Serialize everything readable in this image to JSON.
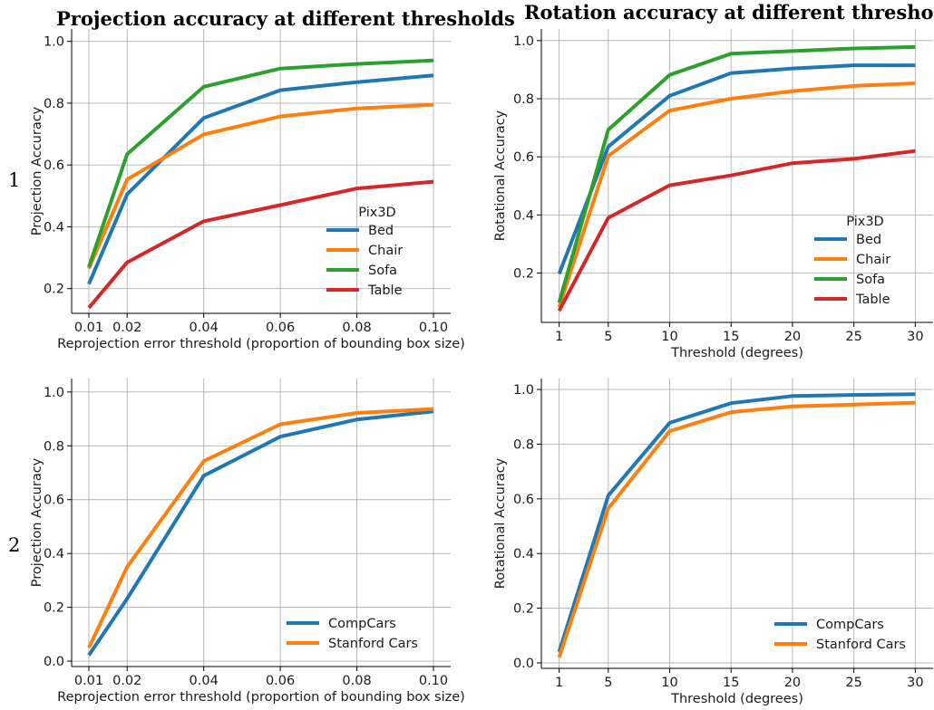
{
  "column_titles": [
    "Projection accuracy at different thresholds",
    "Rotation accuracy at different thresholds"
  ],
  "row_labels": [
    "1",
    "2"
  ],
  "colors": {
    "blue": "#1f77b4",
    "orange": "#ff7f0e",
    "green": "#2ca02c",
    "red": "#d62728"
  },
  "chart_data": [
    {
      "type": "line",
      "title": "Projection accuracy at different thresholds",
      "xlabel": "Reprojection error threshold (proportion of bounding box size)",
      "ylabel": "Projection Accuracy",
      "x": [
        0.01,
        0.02,
        0.04,
        0.06,
        0.08,
        0.1
      ],
      "xticks": [
        "0.01",
        "0.02",
        "0.04",
        "0.06",
        "0.08",
        "0.10"
      ],
      "yticks": [
        "0.2",
        "0.4",
        "0.6",
        "0.8",
        "1.0"
      ],
      "xlim": [
        0.0055,
        0.1045
      ],
      "ylim": [
        0.12,
        1.04
      ],
      "grid": true,
      "legend_title": "Pix3D",
      "legend_position": "lower-right",
      "series": [
        {
          "name": "Bed",
          "color": "#1f77b4",
          "values": [
            0.215,
            0.505,
            0.752,
            0.842,
            0.868,
            0.89
          ]
        },
        {
          "name": "Chair",
          "color": "#ff7f0e",
          "values": [
            0.265,
            0.553,
            0.699,
            0.757,
            0.783,
            0.795
          ]
        },
        {
          "name": "Sofa",
          "color": "#2ca02c",
          "values": [
            0.27,
            0.635,
            0.853,
            0.912,
            0.927,
            0.938
          ]
        },
        {
          "name": "Table",
          "color": "#d62728",
          "values": [
            0.138,
            0.285,
            0.418,
            0.47,
            0.524,
            0.546
          ]
        }
      ]
    },
    {
      "type": "line",
      "title": "Rotation accuracy at different thresholds",
      "xlabel": "Threshold (degrees)",
      "ylabel": "Rotational Accuracy",
      "x": [
        1,
        5,
        10,
        15,
        20,
        25,
        30
      ],
      "xticks": [
        "1",
        "5",
        "10",
        "15",
        "20",
        "25",
        "30"
      ],
      "yticks": [
        "0.2",
        "0.4",
        "0.6",
        "0.8",
        "1.0"
      ],
      "xlim": [
        -0.45,
        31.45
      ],
      "ylim": [
        0.03,
        1.04
      ],
      "grid": true,
      "legend_title": "Pix3D",
      "legend_position": "lower-right",
      "series": [
        {
          "name": "Bed",
          "color": "#1f77b4",
          "values": [
            0.197,
            0.635,
            0.81,
            0.888,
            0.904,
            0.915,
            0.915
          ]
        },
        {
          "name": "Chair",
          "color": "#ff7f0e",
          "values": [
            0.083,
            0.603,
            0.759,
            0.8,
            0.826,
            0.844,
            0.853
          ]
        },
        {
          "name": "Sofa",
          "color": "#2ca02c",
          "values": [
            0.098,
            0.693,
            0.882,
            0.955,
            0.964,
            0.973,
            0.978
          ]
        },
        {
          "name": "Table",
          "color": "#d62728",
          "values": [
            0.07,
            0.39,
            0.502,
            0.536,
            0.578,
            0.593,
            0.62
          ]
        }
      ]
    },
    {
      "type": "line",
      "title": "",
      "xlabel": "Reprojection error threshold (proportion of bounding box size)",
      "ylabel": "Projection Accuracy",
      "x": [
        0.01,
        0.02,
        0.04,
        0.06,
        0.08,
        0.1
      ],
      "xticks": [
        "0.01",
        "0.02",
        "0.04",
        "0.06",
        "0.08",
        "0.10"
      ],
      "yticks": [
        "0.0",
        "0.2",
        "0.4",
        "0.6",
        "0.8",
        "1.0"
      ],
      "xlim": [
        0.0055,
        0.1045
      ],
      "ylim": [
        -0.02,
        1.05
      ],
      "grid": true,
      "legend_title": "",
      "legend_position": "lower-right",
      "series": [
        {
          "name": "CompCars",
          "color": "#1f77b4",
          "values": [
            0.022,
            0.232,
            0.689,
            0.834,
            0.898,
            0.928
          ]
        },
        {
          "name": "Stanford Cars",
          "color": "#ff7f0e",
          "values": [
            0.05,
            0.35,
            0.743,
            0.88,
            0.922,
            0.937
          ]
        }
      ]
    },
    {
      "type": "line",
      "title": "",
      "xlabel": "Threshold (degrees)",
      "ylabel": "Rotational Accuracy",
      "x": [
        1,
        5,
        10,
        15,
        20,
        25,
        30
      ],
      "xticks": [
        "1",
        "5",
        "10",
        "15",
        "20",
        "25",
        "30"
      ],
      "yticks": [
        "0.0",
        "0.2",
        "0.4",
        "0.6",
        "0.8",
        "1.0"
      ],
      "xlim": [
        -0.45,
        31.45
      ],
      "ylim": [
        -0.02,
        1.04
      ],
      "grid": true,
      "legend_title": "",
      "legend_position": "lower-right",
      "series": [
        {
          "name": "CompCars",
          "color": "#1f77b4",
          "values": [
            0.04,
            0.612,
            0.878,
            0.95,
            0.976,
            0.98,
            0.983
          ]
        },
        {
          "name": "Stanford Cars",
          "color": "#ff7f0e",
          "values": [
            0.02,
            0.565,
            0.848,
            0.917,
            0.938,
            0.945,
            0.952
          ]
        }
      ]
    }
  ]
}
